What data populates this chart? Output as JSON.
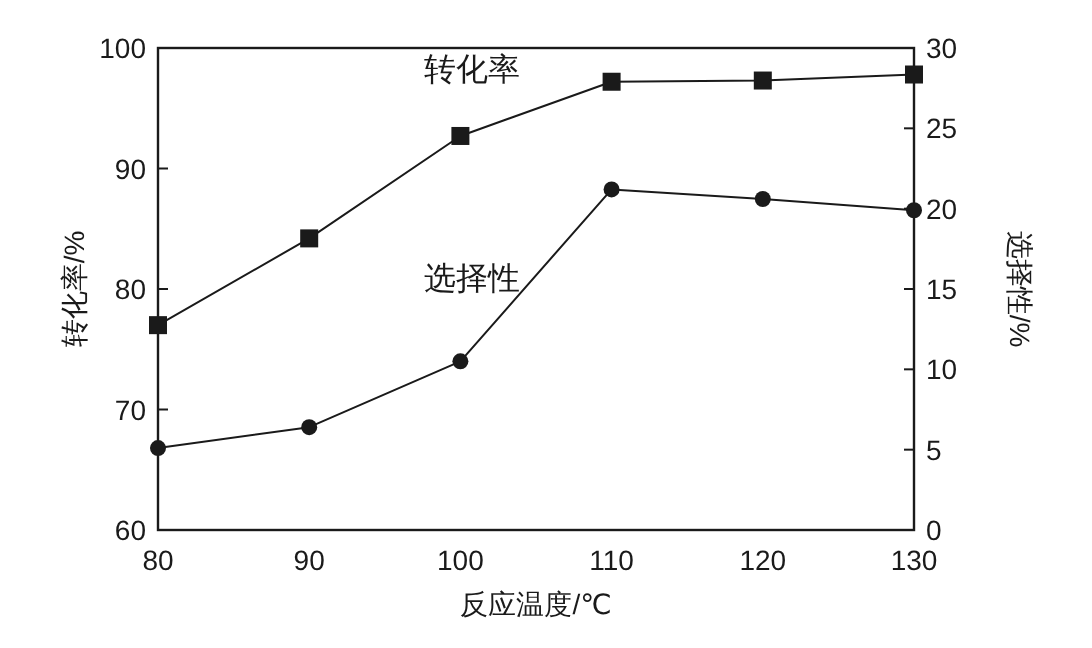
{
  "chart_data": {
    "type": "line",
    "xlabel": "反应温度/℃",
    "ylabel": "转化率/%",
    "y2label": "选择性/%",
    "x": [
      80,
      90,
      100,
      110,
      120,
      130
    ],
    "xlim": [
      80,
      130
    ],
    "xticks": [
      80,
      90,
      100,
      110,
      120,
      130
    ],
    "ylim": [
      60,
      100
    ],
    "yticks": [
      60,
      70,
      80,
      90,
      100
    ],
    "y2lim": [
      0,
      30
    ],
    "y2ticks": [
      0,
      5,
      10,
      15,
      20,
      25,
      30
    ],
    "grid": false,
    "legend": false,
    "series": [
      {
        "name": "转化率",
        "color": "#1a1a1a",
        "marker": "square",
        "values": [
          77.0,
          84.2,
          92.7,
          97.2,
          97.3,
          97.8
        ]
      },
      {
        "name": "选择性",
        "color": "#1a1a1a",
        "marker": "circle",
        "axis": "y2",
        "values": [
          5.1,
          6.4,
          10.5,
          21.2,
          20.6,
          19.9
        ]
      }
    ]
  }
}
